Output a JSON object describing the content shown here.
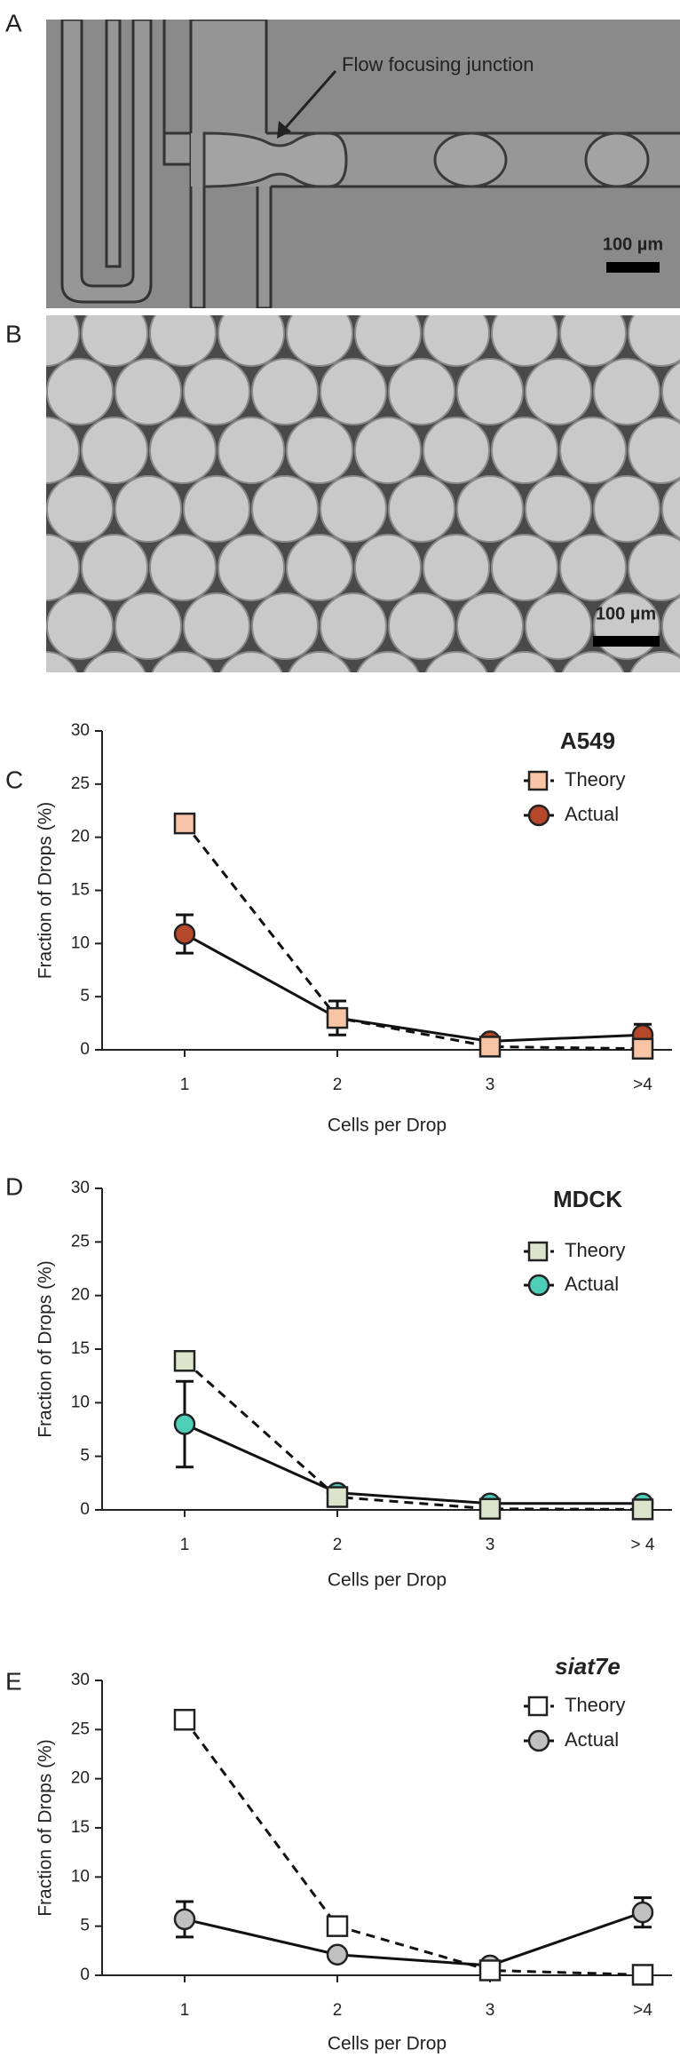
{
  "panels": {
    "a": {
      "label": "A",
      "annotation": "Flow focusing junction",
      "scale_bar": "100 µm"
    },
    "b": {
      "label": "B",
      "scale_bar": "100 µm"
    }
  },
  "chart_data": [
    {
      "type": "line",
      "panel_label": "C",
      "title": "A549",
      "title_italic": false,
      "xlabel": "Cells per Drop",
      "ylabel": "Fraction of Drops (%)",
      "categories": [
        "1",
        "2",
        "3",
        ">4"
      ],
      "ylim": [
        0,
        30
      ],
      "yticks": [
        0,
        5,
        10,
        15,
        20,
        25,
        30
      ],
      "series": [
        {
          "name": "Theory",
          "color": "#f7c4a5",
          "marker": "square",
          "linestyle": "dashed",
          "values": [
            21.3,
            3.0,
            0.3,
            0.1
          ]
        },
        {
          "name": "Actual",
          "color": "#b5472b",
          "marker": "circle",
          "linestyle": "solid",
          "values": [
            10.9,
            3.0,
            0.8,
            1.4
          ],
          "errors": [
            1.8,
            1.6,
            0.3,
            1.0
          ]
        }
      ]
    },
    {
      "type": "line",
      "panel_label": "D",
      "title": "MDCK",
      "title_italic": false,
      "xlabel": "Cells per Drop",
      "ylabel": "Fraction of Drops (%)",
      "categories": [
        "1",
        "2",
        "3",
        "> 4"
      ],
      "ylim": [
        0,
        30
      ],
      "yticks": [
        0,
        5,
        10,
        15,
        20,
        25,
        30
      ],
      "series": [
        {
          "name": "Theory",
          "color": "#dde4cc",
          "marker": "square",
          "linestyle": "dashed",
          "values": [
            13.9,
            1.2,
            0.1,
            0.05
          ]
        },
        {
          "name": "Actual",
          "color": "#4ecdb9",
          "marker": "circle",
          "linestyle": "solid",
          "values": [
            8.0,
            1.6,
            0.6,
            0.6
          ],
          "errors": [
            4.0,
            0.3,
            0.2,
            0.2
          ]
        }
      ]
    },
    {
      "type": "line",
      "panel_label": "E",
      "title": "siat7e",
      "title_italic": true,
      "xlabel": "Cells per Drop",
      "ylabel": "Fraction of Drops (%)",
      "categories": [
        "1",
        "2",
        "3",
        ">4"
      ],
      "ylim": [
        0,
        30
      ],
      "yticks": [
        0,
        5,
        10,
        15,
        20,
        25,
        30
      ],
      "series": [
        {
          "name": "Theory",
          "color": "#ffffff",
          "marker": "square",
          "linestyle": "dashed",
          "values": [
            26.0,
            5.0,
            0.5,
            0.05
          ]
        },
        {
          "name": "Actual",
          "color": "#c0c0c0",
          "marker": "circle",
          "linestyle": "solid",
          "values": [
            5.7,
            2.1,
            1.0,
            6.4
          ],
          "errors": [
            1.8,
            0.3,
            0.3,
            1.5
          ]
        }
      ]
    }
  ]
}
